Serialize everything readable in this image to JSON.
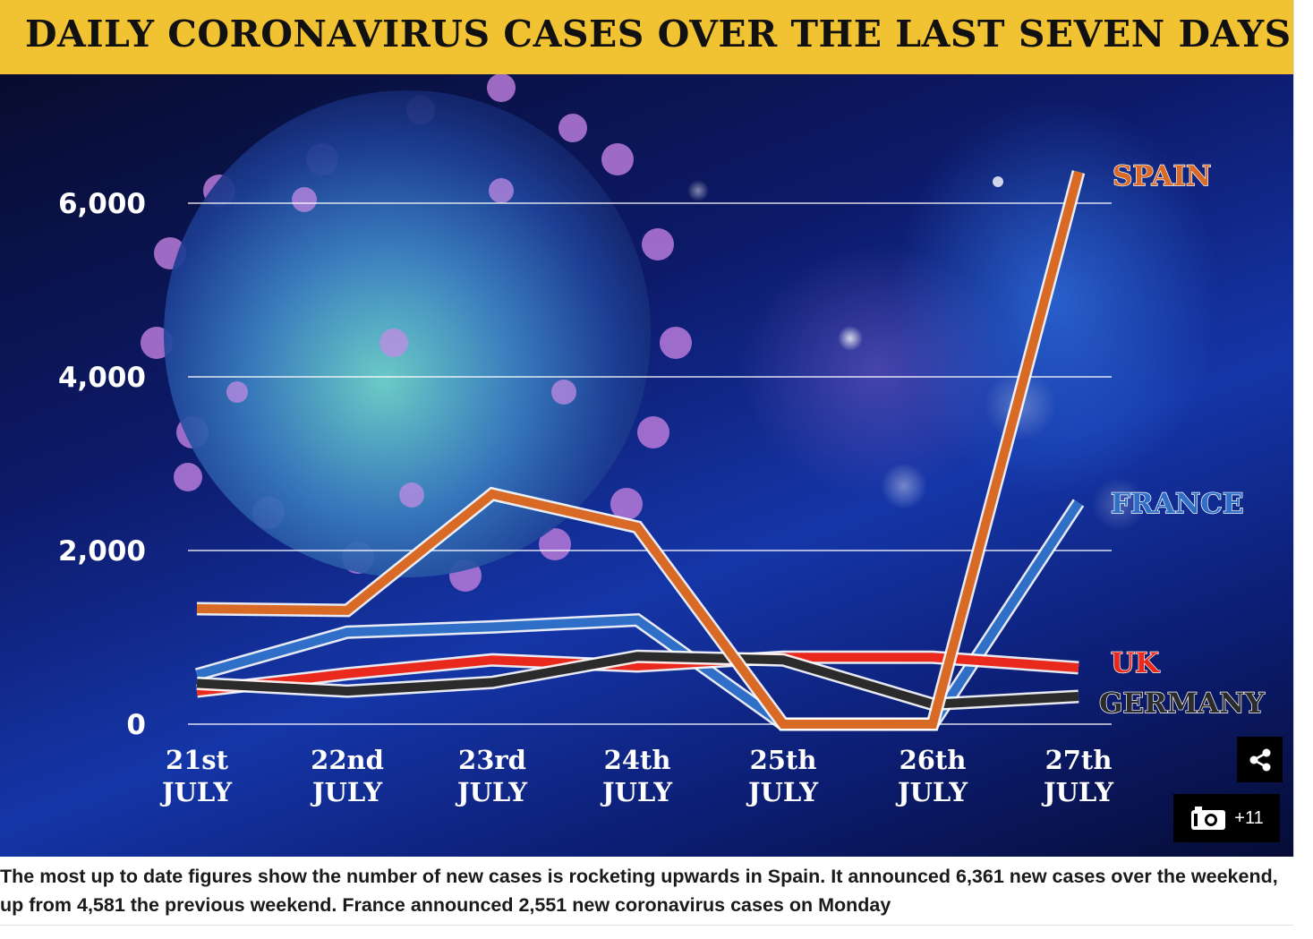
{
  "header": {
    "title": "DAILY CORONAVIRUS CASES OVER THE LAST SEVEN DAYS"
  },
  "chart_data": {
    "type": "line",
    "title": "DAILY CORONAVIRUS CASES OVER THE LAST SEVEN DAYS",
    "x": [
      [
        "21st",
        "JULY"
      ],
      [
        "22nd",
        "JULY"
      ],
      [
        "23rd",
        "JULY"
      ],
      [
        "24th",
        "JULY"
      ],
      [
        "25th",
        "JULY"
      ],
      [
        "26th",
        "JULY"
      ],
      [
        "27th",
        "JULY"
      ]
    ],
    "yticks": [
      0,
      2000,
      4000,
      6000
    ],
    "ytick_labels": [
      "0",
      "2,000",
      "4,000",
      "6,000"
    ],
    "ylim": [
      0,
      6000
    ],
    "grid": true,
    "series": [
      {
        "name": "SPAIN",
        "color": "#d96a26",
        "values": [
          1330,
          1310,
          2650,
          2270,
          0,
          0,
          6360
        ]
      },
      {
        "name": "FRANCE",
        "color": "#2f6fc7",
        "values": [
          570,
          1060,
          1120,
          1200,
          0,
          0,
          2550
        ]
      },
      {
        "name": "UK",
        "color": "#e8291c",
        "values": [
          380,
          580,
          740,
          670,
          770,
          770,
          650
        ]
      },
      {
        "name": "GERMANY",
        "color": "#2b2b2b",
        "values": [
          470,
          380,
          480,
          780,
          740,
          230,
          320
        ]
      }
    ]
  },
  "controls": {
    "gallery_count": "+11"
  },
  "caption": "The most up to date figures show the number of new cases is rocketing upwards in Spain. It announced 6,361 new cases over the weekend, up from 4,581 the previous weekend. France announced 2,551 new coronavirus cases on Monday"
}
